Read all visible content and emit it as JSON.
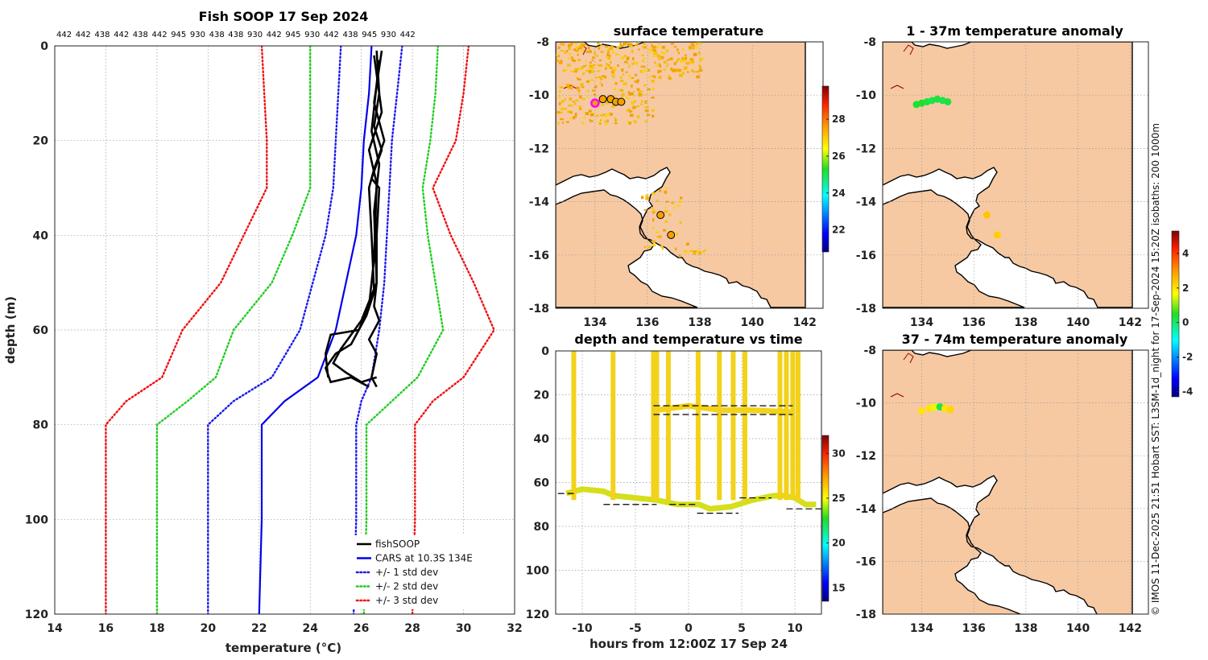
{
  "profile": {
    "title": "Fish SOOP 17 Sep 2024",
    "top_labels": [
      "442",
      "442",
      "438",
      "442",
      "438",
      "442",
      "945",
      "930",
      "438",
      "438",
      "930",
      "442",
      "945",
      "930",
      "442",
      "438",
      "945",
      "930",
      "442"
    ],
    "xlabel": "temperature (°C)",
    "ylabel": "depth (m)"
  },
  "map_sst": {
    "title": "surface temperature"
  },
  "map_anom1": {
    "title": "1 - 37m temperature anomaly"
  },
  "map_anom2": {
    "title": "37 - 74m temperature anomaly"
  },
  "timeplot": {
    "title": "depth and temperature vs time",
    "xlabel": "hours from 12:00Z 17 Sep 24"
  },
  "credit": "© IMOS 11-Dec-2025 21:51 Hobart SST: L3SM-1d_night for 17-Sep-2024 15:20Z isobaths: 200  1000m",
  "colors": {
    "fish": "#000000",
    "cars": "#0000ee",
    "std1": "#1a1aee",
    "std2": "#22cc22",
    "std3": "#ee1111",
    "land": "#f6c9a3",
    "observation_yellow": "#f2d21a"
  },
  "chart_data": [
    {
      "type": "line",
      "name": "profile",
      "xlim": [
        14,
        32
      ],
      "ylim": [
        120,
        0
      ],
      "xticks": [
        14,
        16,
        18,
        20,
        22,
        24,
        26,
        28,
        30,
        32
      ],
      "yticks": [
        0,
        20,
        40,
        60,
        80,
        100,
        120
      ],
      "legend": [
        "fishSOOP",
        "CARS at 10.3S 134E",
        "+/- 1 std dev",
        "+/- 2 std dev",
        "+/- 3 std dev"
      ],
      "legend_position": "bottom-right",
      "series": [
        {
          "name": "CARS",
          "style": "solid",
          "color": "#0000ee",
          "points": [
            [
              26.4,
              0
            ],
            [
              26.3,
              10
            ],
            [
              26.1,
              20
            ],
            [
              26.0,
              30
            ],
            [
              25.8,
              40
            ],
            [
              25.4,
              50
            ],
            [
              25.0,
              60
            ],
            [
              24.3,
              70
            ],
            [
              23.0,
              75
            ],
            [
              22.1,
              80
            ],
            [
              22.1,
              100
            ],
            [
              22.0,
              120
            ]
          ]
        },
        {
          "name": "+1 std",
          "style": "dotted",
          "color": "#1a1aee",
          "points": [
            [
              27.6,
              0
            ],
            [
              27.4,
              10
            ],
            [
              27.2,
              20
            ],
            [
              27.1,
              30
            ],
            [
              27.0,
              40
            ],
            [
              26.9,
              50
            ],
            [
              26.7,
              60
            ],
            [
              26.4,
              70
            ],
            [
              26.0,
              75
            ],
            [
              25.8,
              80
            ],
            [
              25.8,
              100
            ],
            [
              25.7,
              120
            ]
          ]
        },
        {
          "name": "-1 std",
          "style": "dotted",
          "color": "#1a1aee",
          "points": [
            [
              25.2,
              0
            ],
            [
              25.1,
              10
            ],
            [
              25.0,
              20
            ],
            [
              24.9,
              30
            ],
            [
              24.6,
              40
            ],
            [
              24.1,
              50
            ],
            [
              23.6,
              60
            ],
            [
              22.5,
              70
            ],
            [
              21.0,
              75
            ],
            [
              20.0,
              80
            ],
            [
              20.0,
              100
            ],
            [
              20.0,
              120
            ]
          ]
        },
        {
          "name": "+2 std",
          "style": "dotted",
          "color": "#22cc22",
          "points": [
            [
              29.0,
              0
            ],
            [
              28.9,
              10
            ],
            [
              28.7,
              20
            ],
            [
              28.4,
              30
            ],
            [
              28.6,
              40
            ],
            [
              28.9,
              50
            ],
            [
              29.2,
              60
            ],
            [
              28.2,
              70
            ],
            [
              27.2,
              75
            ],
            [
              26.2,
              80
            ],
            [
              26.2,
              100
            ],
            [
              26.1,
              120
            ]
          ]
        },
        {
          "name": "-2 std",
          "style": "dotted",
          "color": "#22cc22",
          "points": [
            [
              24.0,
              0
            ],
            [
              24.0,
              10
            ],
            [
              24.0,
              20
            ],
            [
              24.0,
              30
            ],
            [
              23.3,
              40
            ],
            [
              22.5,
              50
            ],
            [
              21.0,
              60
            ],
            [
              20.3,
              70
            ],
            [
              19.2,
              75
            ],
            [
              18.0,
              80
            ],
            [
              18.0,
              100
            ],
            [
              18.0,
              120
            ]
          ]
        },
        {
          "name": "+3 std",
          "style": "dotted",
          "color": "#ee1111",
          "points": [
            [
              30.2,
              0
            ],
            [
              30.0,
              10
            ],
            [
              29.7,
              20
            ],
            [
              28.8,
              30
            ],
            [
              29.5,
              40
            ],
            [
              30.4,
              50
            ],
            [
              31.2,
              60
            ],
            [
              30.0,
              70
            ],
            [
              28.8,
              75
            ],
            [
              28.1,
              80
            ],
            [
              28.1,
              100
            ],
            [
              28.0,
              120
            ]
          ]
        },
        {
          "name": "-3 std",
          "style": "dotted",
          "color": "#ee1111",
          "points": [
            [
              22.1,
              0
            ],
            [
              22.2,
              10
            ],
            [
              22.3,
              20
            ],
            [
              22.3,
              30
            ],
            [
              21.4,
              40
            ],
            [
              20.5,
              50
            ],
            [
              19.0,
              60
            ],
            [
              18.2,
              70
            ],
            [
              16.8,
              75
            ],
            [
              16.0,
              80
            ],
            [
              16.0,
              100
            ],
            [
              16.0,
              120
            ]
          ]
        },
        {
          "name": "fishSOOP",
          "style": "solid",
          "color": "#000000",
          "points": [
            [
              26.6,
              1
            ],
            [
              26.7,
              10
            ],
            [
              26.5,
              17
            ],
            [
              26.8,
              22
            ],
            [
              26.4,
              28
            ],
            [
              26.7,
              30
            ],
            [
              26.6,
              40
            ],
            [
              26.6,
              50
            ],
            [
              26.5,
              55
            ],
            [
              26.7,
              58
            ],
            [
              26.3,
              62
            ],
            [
              26.6,
              65
            ],
            [
              26.4,
              70
            ],
            [
              26.6,
              72
            ]
          ]
        },
        {
          "name": "fishSOOP",
          "style": "solid",
          "color": "#000000",
          "points": [
            [
              26.8,
              1
            ],
            [
              26.5,
              12
            ],
            [
              26.9,
              20
            ],
            [
              26.5,
              26
            ],
            [
              26.3,
              30
            ],
            [
              26.4,
              40
            ],
            [
              26.5,
              52
            ],
            [
              26.2,
              57
            ],
            [
              25.6,
              63
            ],
            [
              25.0,
              65
            ],
            [
              24.6,
              68
            ],
            [
              24.8,
              71
            ],
            [
              25.6,
              70
            ],
            [
              26.3,
              72
            ]
          ]
        },
        {
          "name": "fishSOOP",
          "style": "solid",
          "color": "#000000",
          "points": [
            [
              26.5,
              2
            ],
            [
              26.8,
              14
            ],
            [
              26.3,
              22
            ],
            [
              26.6,
              29
            ],
            [
              26.5,
              45
            ],
            [
              26.3,
              55
            ],
            [
              25.9,
              60
            ],
            [
              24.8,
              61
            ],
            [
              24.6,
              65
            ],
            [
              24.7,
              70
            ]
          ]
        },
        {
          "name": "fishSOOP",
          "style": "solid",
          "color": "#000000",
          "points": [
            [
              26.7,
              3
            ],
            [
              26.4,
              18
            ],
            [
              26.7,
              25
            ],
            [
              26.5,
              35
            ],
            [
              26.6,
              50
            ],
            [
              26.0,
              58
            ],
            [
              25.2,
              64
            ],
            [
              24.9,
              67
            ],
            [
              25.4,
              69
            ],
            [
              26.0,
              71
            ],
            [
              26.6,
              70
            ]
          ]
        }
      ]
    },
    {
      "type": "scatter",
      "name": "timeplot",
      "xlim": [
        -12.5,
        12.5
      ],
      "ylim": [
        120,
        0
      ],
      "xticks": [
        -10,
        -5,
        0,
        5,
        10
      ],
      "yticks": [
        0,
        20,
        40,
        60,
        80,
        100,
        120
      ],
      "colorbar": {
        "range": [
          13.5,
          32
        ],
        "ticks": [
          15,
          20,
          25,
          30
        ]
      },
      "bottom_path": [
        [
          -11.5,
          65
        ],
        [
          -10,
          63
        ],
        [
          -8,
          64
        ],
        [
          -7,
          66
        ],
        [
          -5,
          67
        ],
        [
          -3,
          68
        ],
        [
          -1,
          70
        ],
        [
          1,
          70
        ],
        [
          2,
          72
        ],
        [
          4,
          71
        ],
        [
          6,
          68
        ],
        [
          8,
          66
        ],
        [
          9,
          66
        ],
        [
          10,
          67
        ],
        [
          11,
          70
        ],
        [
          12,
          70
        ]
      ],
      "upper_path": [
        [
          -3,
          27
        ],
        [
          0,
          25
        ],
        [
          3,
          27
        ],
        [
          6,
          27
        ],
        [
          10,
          28
        ]
      ],
      "dives": [
        -10.8,
        -7.1,
        -3.3,
        -3.0,
        -1.9,
        0.9,
        2.9,
        4.2,
        5.3,
        8.6,
        9.2,
        9.8,
        10.3
      ],
      "dashes": [
        [
          -12.3,
          -10.8,
          65
        ],
        [
          -8.0,
          -3.0,
          70
        ],
        [
          -1.8,
          0.8,
          70
        ],
        [
          0.8,
          4.7,
          74
        ],
        [
          4.8,
          7.8,
          67
        ],
        [
          9.2,
          12.5,
          72
        ],
        [
          -3.3,
          9.8,
          25
        ],
        [
          -3.3,
          9.8,
          29
        ]
      ]
    },
    {
      "type": "heatmap",
      "name": "map_sst",
      "xlim": [
        132.5,
        142.7
      ],
      "ylim": [
        -18,
        -8
      ],
      "xticks": [
        134,
        136,
        138,
        140,
        142
      ],
      "yticks": [
        -8,
        -10,
        -12,
        -14,
        -16,
        -18
      ],
      "colorbar": {
        "range": [
          20.8,
          29.8
        ],
        "ticks": [
          22,
          24,
          26,
          28
        ]
      },
      "stations": [
        [
          134.0,
          -10.3
        ],
        [
          134.3,
          -10.15
        ],
        [
          134.6,
          -10.15
        ],
        [
          134.8,
          -10.25
        ],
        [
          135.0,
          -10.25
        ],
        [
          136.5,
          -14.5
        ],
        [
          136.9,
          -15.25
        ]
      ]
    },
    {
      "type": "heatmap",
      "name": "map_anom1",
      "xlim": [
        132.5,
        142.7
      ],
      "ylim": [
        -18,
        -8
      ],
      "xticks": [
        134,
        136,
        138,
        140,
        142
      ],
      "yticks": [
        -8,
        -10,
        -12,
        -14,
        -16,
        -18
      ],
      "colorbar": {
        "range": [
          -4.3,
          5.3
        ],
        "ticks": [
          -4,
          -2,
          0,
          2,
          4
        ]
      },
      "anomaly_points": [
        [
          133.8,
          -10.35,
          0.4
        ],
        [
          134.0,
          -10.3,
          0.4
        ],
        [
          134.2,
          -10.25,
          0.3
        ],
        [
          134.4,
          -10.2,
          0.2
        ],
        [
          134.6,
          -10.15,
          0.3
        ],
        [
          134.8,
          -10.2,
          0.2
        ],
        [
          135.0,
          -10.25,
          0.3
        ],
        [
          136.5,
          -14.5,
          2.4
        ],
        [
          136.9,
          -15.25,
          2.3
        ]
      ]
    },
    {
      "type": "heatmap",
      "name": "map_anom2",
      "xlim": [
        132.5,
        142.7
      ],
      "ylim": [
        -18,
        -8
      ],
      "xticks": [
        134,
        136,
        138,
        140,
        142
      ],
      "yticks": [
        -8,
        -10,
        -12,
        -14,
        -16,
        -18
      ],
      "anomaly_points": [
        [
          134.0,
          -10.3,
          2.0
        ],
        [
          134.3,
          -10.2,
          2.0
        ],
        [
          134.5,
          -10.15,
          1.5
        ],
        [
          134.7,
          -10.15,
          0.2
        ],
        [
          134.9,
          -10.2,
          2.0
        ],
        [
          135.1,
          -10.25,
          2.2
        ]
      ]
    }
  ]
}
